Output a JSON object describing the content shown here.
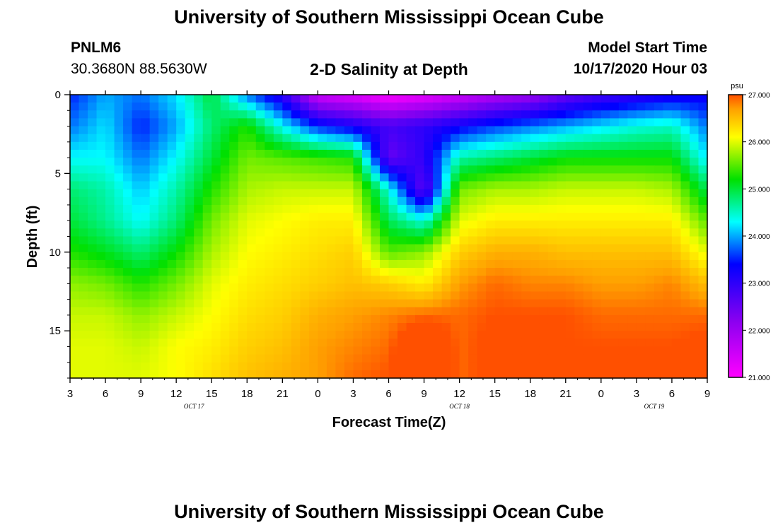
{
  "header": {
    "title": "University of Southern Mississippi Ocean Cube",
    "station": "PNLM6",
    "coords": "30.3680N 88.5630W",
    "plot_title": "2-D Salinity at Depth",
    "model_label": "Model Start Time",
    "model_time": "10/17/2020 Hour 03"
  },
  "footer": {
    "title": "University of Southern Mississippi Ocean Cube"
  },
  "chart_data": {
    "type": "heatmap",
    "title": "2-D Salinity at Depth",
    "xlabel": "Forecast Time(Z)",
    "ylabel": "Depth (ft)",
    "x_ticks": [
      "3",
      "6",
      "9",
      "12",
      "15",
      "18",
      "21",
      "0",
      "3",
      "6",
      "9",
      "12",
      "15",
      "18",
      "21",
      "0",
      "3",
      "6",
      "9"
    ],
    "x_range_hours": [
      0,
      54
    ],
    "date_labels": [
      {
        "hour": 10.5,
        "text": "OCT 17"
      },
      {
        "hour": 33,
        "text": "OCT 18"
      },
      {
        "hour": 49.5,
        "text": "OCT 19"
      }
    ],
    "y_ticks": [
      0,
      5,
      10,
      15
    ],
    "y_range_ft": [
      0,
      18
    ],
    "colorbar": {
      "unit": "psu",
      "range": [
        21.0,
        27.0
      ],
      "ticks": [
        "27.000",
        "26.000",
        "25.000",
        "24.000",
        "23.000",
        "22.000",
        "21.000"
      ]
    },
    "hours": [
      0,
      3,
      6,
      9,
      12,
      15,
      18,
      21,
      24,
      27,
      30,
      33,
      36,
      39,
      42,
      45,
      48,
      51,
      54
    ],
    "depths_ft": [
      0,
      2,
      4,
      6,
      8,
      10,
      12,
      14,
      16,
      18
    ],
    "salinity_psu": [
      [
        23.5,
        24.0,
        23.8,
        24.2,
        25.0,
        23.8,
        23.0,
        21.5,
        21.3,
        21.0,
        21.2,
        21.5,
        21.8,
        22.0,
        22.5,
        22.8,
        23.0,
        23.2,
        23.3
      ],
      [
        23.8,
        24.2,
        23.5,
        24.0,
        24.8,
        25.3,
        24.3,
        23.5,
        23.2,
        22.8,
        23.0,
        23.3,
        23.6,
        23.8,
        24.0,
        24.2,
        24.4,
        24.5,
        23.8
      ],
      [
        24.3,
        24.3,
        23.8,
        24.3,
        25.0,
        25.6,
        25.5,
        25.4,
        25.3,
        22.5,
        23.0,
        24.6,
        24.8,
        25.0,
        25.2,
        25.2,
        25.2,
        25.2,
        24.2
      ],
      [
        24.8,
        24.6,
        24.1,
        24.6,
        25.3,
        25.8,
        25.9,
        25.9,
        25.9,
        24.4,
        22.5,
        25.6,
        25.8,
        25.8,
        25.9,
        25.9,
        25.9,
        25.8,
        24.9
      ],
      [
        25.0,
        24.7,
        24.3,
        24.8,
        25.6,
        26.0,
        26.1,
        26.2,
        26.2,
        24.9,
        24.4,
        26.0,
        26.2,
        26.2,
        26.2,
        26.2,
        26.2,
        26.2,
        25.5
      ],
      [
        25.3,
        25.1,
        24.8,
        25.2,
        25.8,
        26.1,
        26.2,
        26.3,
        26.4,
        25.5,
        25.7,
        26.4,
        26.6,
        26.6,
        26.5,
        26.5,
        26.5,
        26.5,
        26.0
      ],
      [
        25.7,
        25.6,
        25.3,
        25.6,
        26.0,
        26.2,
        26.3,
        26.4,
        26.5,
        26.4,
        26.2,
        26.7,
        26.9,
        26.8,
        26.8,
        26.7,
        26.7,
        26.8,
        26.5
      ],
      [
        25.9,
        25.9,
        25.7,
        25.9,
        26.1,
        26.3,
        26.4,
        26.6,
        26.7,
        26.8,
        26.9,
        26.9,
        27.0,
        27.0,
        27.0,
        26.9,
        26.9,
        26.9,
        26.9
      ],
      [
        26.0,
        26.0,
        25.9,
        26.1,
        26.2,
        26.4,
        26.5,
        26.7,
        26.8,
        26.9,
        27.5,
        26.9,
        27.1,
        27.1,
        27.0,
        27.0,
        27.0,
        27.0,
        27.1
      ],
      [
        26.0,
        26.0,
        26.0,
        26.1,
        26.3,
        26.5,
        26.6,
        26.7,
        26.9,
        27.0,
        27.6,
        26.9,
        27.1,
        27.1,
        27.1,
        27.0,
        27.0,
        27.0,
        27.2
      ]
    ]
  }
}
